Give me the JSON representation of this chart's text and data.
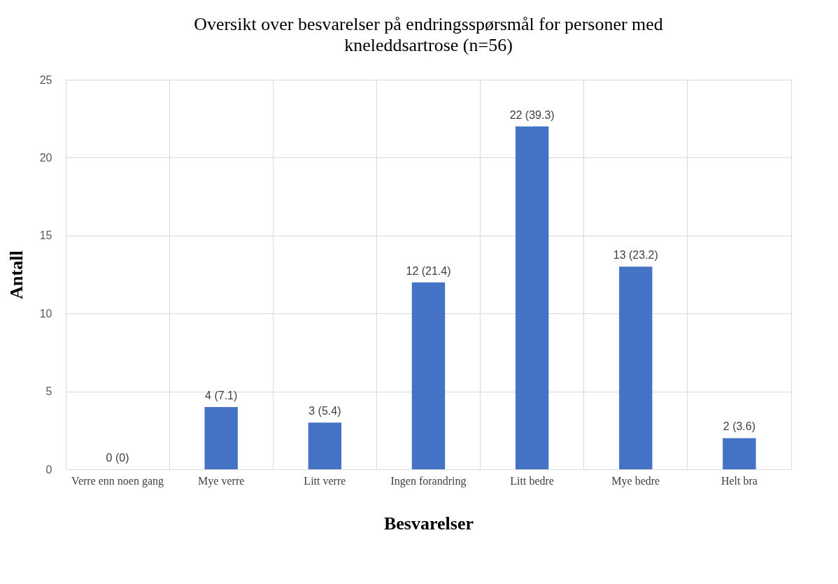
{
  "chart_data": {
    "type": "bar",
    "title": "Oversikt over besvarelser på endringsspørsmål for personer med kneleddsartrose (n=56)",
    "xlabel": "Besvarelser",
    "ylabel": "Antall",
    "categories": [
      "Verre enn noen gang",
      "Mye verre",
      "Litt verre",
      "Ingen forandring",
      "Litt bedre",
      "Mye bedre",
      "Helt bra"
    ],
    "values": [
      0,
      4,
      3,
      12,
      22,
      13,
      2
    ],
    "value_labels": [
      "0 (0)",
      "4 (7.1)",
      "3 (5.4)",
      "12 (21.4)",
      "22 (39.3)",
      "13 (23.2)",
      "2 (3.6)"
    ],
    "color": "#4472c4",
    "ylim": [
      0,
      25
    ],
    "yticks": [
      0,
      5,
      10,
      15,
      20,
      25
    ],
    "grid": true
  }
}
